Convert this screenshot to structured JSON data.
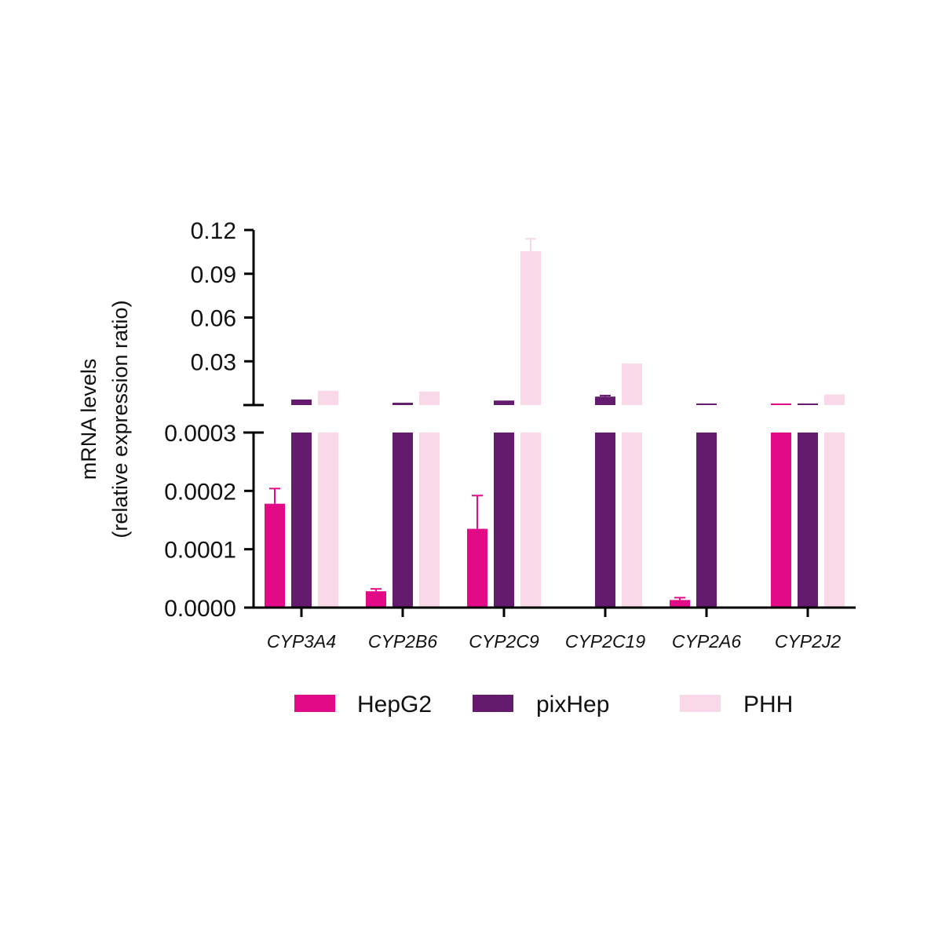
{
  "chart_data": {
    "type": "bar",
    "categories": [
      "CYP3A4",
      "CYP2B6",
      "CYP2C9",
      "CYP2C19",
      "CYP2A6",
      "CYP2J2"
    ],
    "ylabel_line1": "mRNA levels",
    "ylabel_line2": "(relative expression ratio)",
    "ylim_lower": [
      0,
      0.0003
    ],
    "ylim_upper": [
      0,
      0.12
    ],
    "yticks_lower": [
      "0.0000",
      "0.0001",
      "0.0002",
      "0.0003"
    ],
    "yticks_upper": [
      "0.03",
      "0.06",
      "0.09",
      "0.12"
    ],
    "axis_break": true,
    "legend_position": "bottom",
    "series": [
      {
        "name": "HepG2",
        "color": "#e20a87",
        "values": [
          0.000178,
          2.8e-05,
          0.000135,
          0,
          1.3e-05,
          0.00095
        ],
        "errors": [
          2.6e-05,
          4e-06,
          5.7e-05,
          0,
          4e-06,
          0
        ]
      },
      {
        "name": "pixHep",
        "color": "#641b6e",
        "values": [
          0.0038,
          0.0016,
          0.0031,
          0.0058,
          0.0009,
          0.0009
        ],
        "errors": [
          0,
          0,
          0,
          0.0007,
          0,
          0
        ]
      },
      {
        "name": "PHH",
        "color": "#f9d9e8",
        "values": [
          0.0098,
          0.0092,
          0.1055,
          0.0285,
          0,
          0.0072
        ],
        "errors": [
          0,
          0,
          0.0085,
          0,
          0,
          0
        ]
      }
    ]
  }
}
